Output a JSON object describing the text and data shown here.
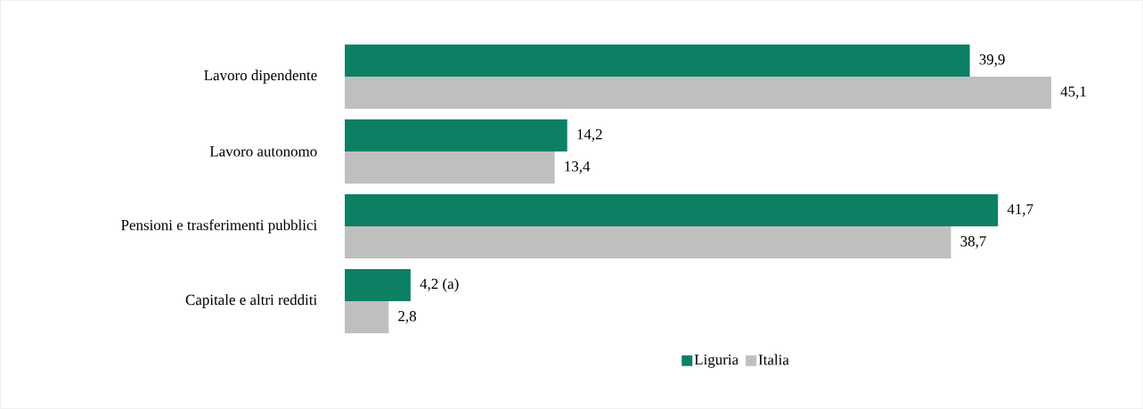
{
  "chart_data": {
    "type": "bar",
    "orientation": "horizontal",
    "categories": [
      "Lavoro dipendente",
      "Lavoro autonomo",
      "Pensioni e trasferimenti pubblici",
      "Capitale e altri redditi"
    ],
    "series": [
      {
        "name": "Liguria",
        "color": "#0b8065",
        "values": [
          39.9,
          14.2,
          41.7,
          4.2
        ],
        "value_labels": [
          "39,9",
          "14,2",
          "41,7",
          "4,2 (a)"
        ]
      },
      {
        "name": "Italia",
        "color": "#bfbfbf",
        "values": [
          45.1,
          13.4,
          38.7,
          2.8
        ],
        "value_labels": [
          "45,1",
          "13,4",
          "38,7",
          "2,8"
        ]
      }
    ],
    "tick_labels": "y",
    "legend": "bottom"
  }
}
